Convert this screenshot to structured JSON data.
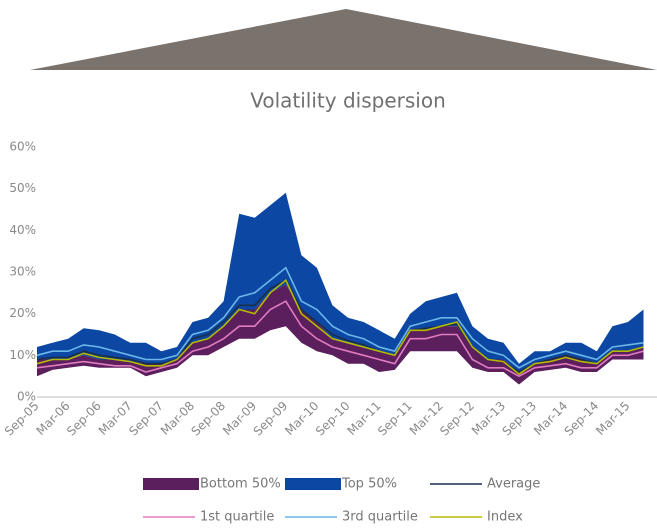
{
  "chart_data": {
    "type": "area",
    "title": "Volatility dispersion",
    "categories": [
      "Sep-05",
      null,
      "Mar-06",
      null,
      "Sep-06",
      null,
      "Mar-07",
      null,
      "Sep-07",
      null,
      "Mar-08",
      null,
      "Sep-08",
      null,
      "Mar-09",
      null,
      "Sep-09",
      null,
      "Mar-10",
      null,
      "Sep-10",
      null,
      "Mar-11",
      null,
      "Sep-11",
      null,
      "Mar-12",
      null,
      "Sep-12",
      null,
      "Mar-13",
      null,
      "Sep-13",
      null,
      "Mar-14",
      null,
      "Sep-14",
      null,
      "Mar-15",
      null
    ],
    "ylim": [
      0,
      60
    ],
    "yticks": [
      {
        "value": 0,
        "label": "0%"
      },
      {
        "value": 10,
        "label": "10%"
      },
      {
        "value": 20,
        "label": "20%"
      },
      {
        "value": 30,
        "label": "30%"
      },
      {
        "value": 40,
        "label": "40%"
      },
      {
        "value": 50,
        "label": "50%"
      },
      {
        "value": 60,
        "label": "60%"
      }
    ],
    "series": [
      {
        "name": "Top 50%",
        "color": "#0b47a3",
        "low": [
          9,
          9,
          9,
          10,
          9,
          9,
          8.5,
          8,
          8,
          9,
          13,
          14,
          17,
          21,
          21,
          25,
          27,
          21,
          18,
          14,
          13,
          12,
          11,
          10,
          16,
          16,
          17,
          17,
          12,
          9,
          9,
          6,
          8,
          9,
          10,
          9,
          8,
          11,
          11,
          12
        ],
        "high": [
          12,
          13,
          14,
          16.5,
          16,
          15,
          13,
          13,
          11,
          12,
          18,
          19,
          23,
          44,
          43,
          46,
          49,
          34,
          31,
          22,
          19,
          18,
          16,
          14,
          20,
          23,
          24,
          25,
          17,
          14,
          13,
          8,
          11,
          11,
          13,
          13,
          11,
          17,
          18,
          21
        ]
      },
      {
        "name": "Bottom 50%",
        "color": "#5a1f5c",
        "low": [
          5,
          6.5,
          7,
          7.5,
          7,
          7,
          7,
          5,
          6,
          7,
          10,
          10,
          12,
          14,
          14,
          16,
          17,
          13,
          11,
          10,
          8,
          8,
          6,
          6.5,
          11,
          11,
          11,
          11,
          7,
          6,
          6,
          3,
          6,
          6.5,
          7,
          6,
          6,
          9,
          9,
          9
        ],
        "high": [
          9,
          9,
          9,
          10,
          9,
          9,
          8.5,
          8,
          8,
          9,
          13,
          14,
          17,
          21,
          21,
          25,
          27,
          21,
          18,
          14,
          13,
          12,
          11,
          10,
          16,
          16,
          17,
          17,
          12,
          9,
          9,
          6,
          8,
          9,
          10,
          9,
          8,
          11,
          11,
          12
        ]
      },
      {
        "name": "3rd quartile",
        "color": "#6cb6e8",
        "values": [
          10,
          11,
          11,
          12.5,
          12,
          11,
          10,
          9,
          9,
          10,
          15,
          16,
          19,
          24,
          25,
          28,
          31,
          23,
          21,
          17,
          15,
          14,
          12,
          11,
          17,
          18,
          19,
          19,
          14,
          11,
          10,
          7,
          9,
          10,
          11,
          10,
          9,
          12,
          12.5,
          13
        ]
      },
      {
        "name": "1st quartile",
        "color": "#e07bc0",
        "values": [
          7,
          7.5,
          8,
          8.5,
          8,
          7.5,
          7.5,
          6,
          7,
          8,
          11,
          12,
          14,
          17,
          17,
          21,
          23,
          17,
          14,
          12,
          11,
          10,
          9,
          8,
          14,
          14,
          15,
          15,
          9,
          7,
          7,
          5,
          7,
          7.5,
          8,
          7,
          7,
          10,
          10,
          11
        ]
      },
      {
        "name": "Average",
        "color": "#1b2f4b",
        "values": [
          9,
          9.5,
          9.5,
          11,
          10,
          9.5,
          9,
          8,
          8,
          9,
          14,
          15,
          18,
          22,
          22,
          26,
          28,
          21,
          18,
          15,
          13.5,
          12.5,
          11,
          10,
          16,
          16.5,
          17,
          17.5,
          12,
          9,
          8.5,
          6,
          8,
          9,
          10,
          9,
          8,
          11,
          11,
          12
        ]
      },
      {
        "name": "Index",
        "color": "#b5b800",
        "values": [
          8,
          9,
          9,
          10.5,
          9.5,
          9,
          8.5,
          7.5,
          7.5,
          9,
          13,
          14,
          17,
          21,
          20,
          25,
          28,
          20,
          17,
          14,
          13,
          12,
          11,
          10,
          16,
          16,
          17,
          18,
          12,
          9,
          8.5,
          5.5,
          8,
          8.5,
          9.5,
          8.5,
          8,
          11,
          11,
          12
        ]
      }
    ]
  }
}
